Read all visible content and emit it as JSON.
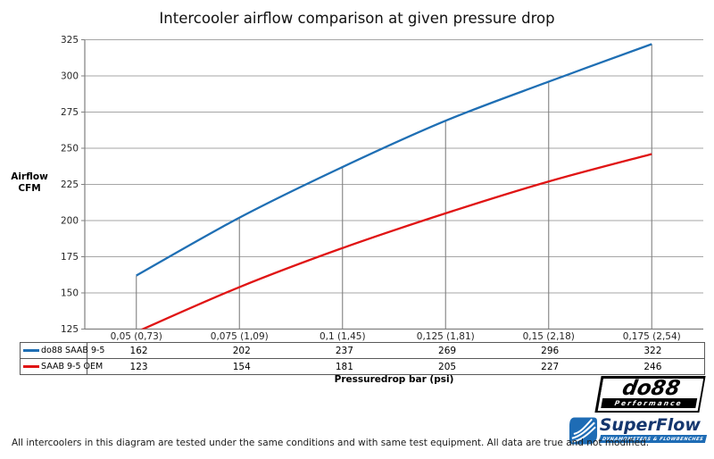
{
  "title": "Intercooler airflow comparison at given pressure drop",
  "y_axis_label": {
    "line1": "Airflow",
    "line2": "CFM"
  },
  "footnote": "All intercoolers in this diagram are tested under the same conditions and with same test equipment. All data are true and not modified.",
  "chart_data": {
    "type": "line",
    "title": "Intercooler airflow comparison at given pressure drop",
    "categories": [
      "0,05 (0,73)",
      "0,075 (1,09)",
      "0,1 (1,45)",
      "0,125 (1,81)",
      "0,15 (2,18)",
      "0,175 (2,54)"
    ],
    "series": [
      {
        "name": "do88 SAAB 9-5",
        "color": "#1f6fb4",
        "values": [
          162,
          202,
          237,
          269,
          296,
          322
        ]
      },
      {
        "name": "SAAB 9-5 OEM",
        "color": "#e01414",
        "values": [
          123,
          154,
          181,
          205,
          227,
          246
        ]
      }
    ],
    "xlabel": "Pressuredrop bar (psi)",
    "ylabel": "Airflow CFM",
    "ylim": [
      125,
      325
    ],
    "ytick_step": 25,
    "grid": true,
    "drop_lines": true,
    "legend_position": "data-table-left",
    "line_smoothing": true
  },
  "logos": {
    "do88": {
      "name": "do88",
      "tagline": "Performance"
    },
    "superflow": {
      "name": "SuperFlow",
      "tagline": "DYNAMOMETERS & FLOWBENCHES"
    }
  },
  "style_colors": {
    "gridline": "#a6a6a6",
    "axis": "#808080",
    "drop_line": "#808080",
    "table_border": "#595959",
    "series_blue": "#1f6fb4",
    "series_red": "#e01414",
    "superflow_blue": "#1e6cb5",
    "superflow_navy": "#14366e"
  }
}
